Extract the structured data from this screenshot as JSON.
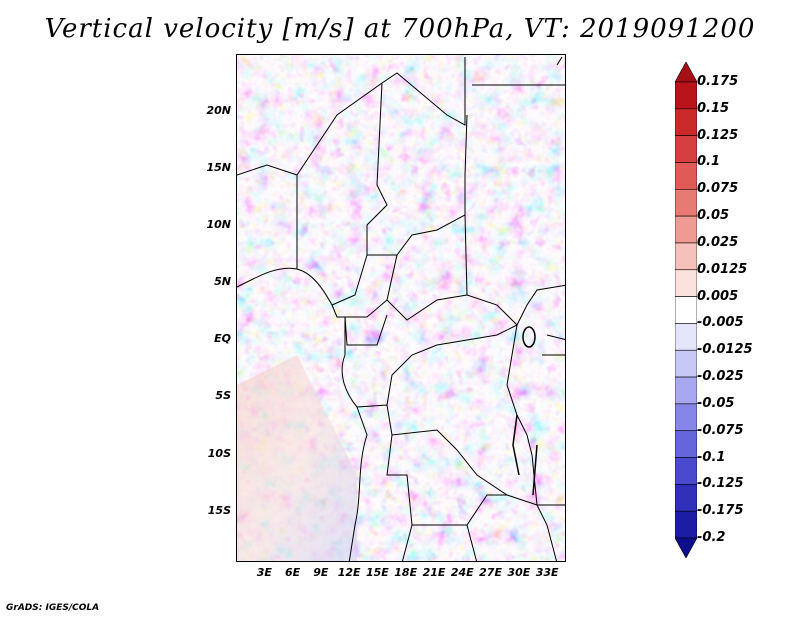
{
  "title": "Vertical velocity [m/s] at 700hPa, VT: 2019091200",
  "credit": "GrADS: IGES/COLA",
  "map": {
    "lat_range": [
      -19.5,
      25
    ],
    "lon_range": [
      0,
      35
    ],
    "lat_ticks": [
      {
        "v": 20,
        "label": "20N"
      },
      {
        "v": 15,
        "label": "15N"
      },
      {
        "v": 10,
        "label": "10N"
      },
      {
        "v": 5,
        "label": "5N"
      },
      {
        "v": 0,
        "label": "EQ"
      },
      {
        "v": -5,
        "label": "5S"
      },
      {
        "v": -10,
        "label": "10S"
      },
      {
        "v": -15,
        "label": "15S"
      }
    ],
    "lon_ticks": [
      {
        "v": 3,
        "label": "3E"
      },
      {
        "v": 6,
        "label": "6E"
      },
      {
        "v": 9,
        "label": "9E"
      },
      {
        "v": 12,
        "label": "12E"
      },
      {
        "v": 15,
        "label": "15E"
      },
      {
        "v": 18,
        "label": "18E"
      },
      {
        "v": 21,
        "label": "21E"
      },
      {
        "v": 24,
        "label": "24E"
      },
      {
        "v": 27,
        "label": "27E"
      },
      {
        "v": 30,
        "label": "30E"
      },
      {
        "v": 33,
        "label": "33E"
      }
    ]
  },
  "colorbar": {
    "units": "m/s",
    "labels": [
      "0.175",
      "0.15",
      "0.125",
      "0.1",
      "0.075",
      "0.05",
      "0.025",
      "0.0125",
      "0.005",
      "-0.005",
      "-0.0125",
      "-0.025",
      "-0.05",
      "-0.075",
      "-0.1",
      "-0.125",
      "-0.175",
      "-0.2"
    ],
    "colors": [
      "#a50f15",
      "#b9141b",
      "#cb2a2a",
      "#d63f3f",
      "#e05a57",
      "#e87a74",
      "#ef9b94",
      "#f6c1ba",
      "#fbe2dd",
      "#ffffff",
      "#e4e4fb",
      "#c8c8f6",
      "#a8a8f0",
      "#8686e8",
      "#6666dc",
      "#4a4acf",
      "#3030bb",
      "#1c1ca4",
      "#0e0e8c"
    ]
  }
}
